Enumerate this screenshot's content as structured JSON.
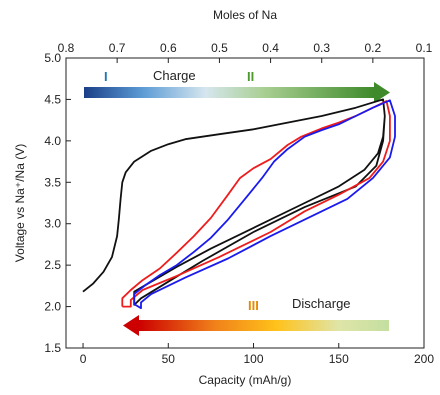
{
  "chart_data": {
    "type": "line",
    "xlabel": "Capacity (mAh/g)",
    "ylabel": "Voltage vs Na⁺/Na (V)",
    "x2label": "Moles of Na",
    "xlim": [
      -10,
      200
    ],
    "ylim": [
      1.5,
      5.0
    ],
    "x2lim": [
      0.8,
      0.1
    ],
    "xticks": [
      "0",
      "50",
      "100",
      "150",
      "200"
    ],
    "yticks": [
      "1.5",
      "2.0",
      "2.5",
      "3.0",
      "3.5",
      "4.0",
      "4.5",
      "5.0"
    ],
    "x2ticks": [
      "0.8",
      "0.7",
      "0.6",
      "0.5",
      "0.4",
      "0.3",
      "0.2",
      "0.1"
    ],
    "grid": false,
    "legend": "none",
    "annotations": {
      "charge_label": "Charge",
      "charge_stage_1": "I",
      "charge_stage_2": "II",
      "discharge_label": "Discharge",
      "discharge_stage_3": "III"
    },
    "colors": {
      "black": "#111111",
      "red": "#ee1c1c",
      "blue": "#1a1aee",
      "stage1": "#1f78b4",
      "stage2": "#4d9a2c",
      "stage3": "#e68a00"
    },
    "series": [
      {
        "color": "#111111",
        "points": [
          [
            0,
            2.18
          ],
          [
            6,
            2.28
          ],
          [
            12,
            2.42
          ],
          [
            17,
            2.6
          ],
          [
            20,
            2.85
          ],
          [
            21,
            3.05
          ],
          [
            22,
            3.3
          ],
          [
            23,
            3.5
          ],
          [
            25,
            3.62
          ],
          [
            30,
            3.75
          ],
          [
            40,
            3.88
          ],
          [
            50,
            3.96
          ],
          [
            60,
            4.02
          ],
          [
            80,
            4.08
          ],
          [
            100,
            4.14
          ],
          [
            120,
            4.22
          ],
          [
            140,
            4.3
          ],
          [
            160,
            4.4
          ],
          [
            176,
            4.5
          ],
          [
            177,
            4.3
          ],
          [
            176,
            4.05
          ],
          [
            173,
            3.85
          ],
          [
            165,
            3.65
          ],
          [
            150,
            3.45
          ],
          [
            130,
            3.25
          ],
          [
            100,
            2.95
          ],
          [
            75,
            2.7
          ],
          [
            55,
            2.48
          ],
          [
            40,
            2.3
          ],
          [
            30,
            2.18
          ],
          [
            30,
            2.02
          ],
          [
            34,
            2.1
          ],
          [
            50,
            2.3
          ],
          [
            70,
            2.55
          ],
          [
            100,
            2.9
          ],
          [
            130,
            3.2
          ],
          [
            160,
            3.45
          ],
          [
            172,
            3.7
          ],
          [
            176,
            4.0
          ],
          [
            177,
            4.3
          ],
          [
            176,
            4.5
          ]
        ]
      },
      {
        "color": "#ee1c1c",
        "points": [
          [
            23,
            2.0
          ],
          [
            23,
            2.1
          ],
          [
            28,
            2.2
          ],
          [
            35,
            2.32
          ],
          [
            45,
            2.46
          ],
          [
            55,
            2.65
          ],
          [
            65,
            2.85
          ],
          [
            75,
            3.07
          ],
          [
            85,
            3.35
          ],
          [
            92,
            3.55
          ],
          [
            100,
            3.67
          ],
          [
            110,
            3.78
          ],
          [
            120,
            3.95
          ],
          [
            128,
            4.05
          ],
          [
            140,
            4.15
          ],
          [
            150,
            4.22
          ],
          [
            160,
            4.3
          ],
          [
            170,
            4.4
          ],
          [
            178,
            4.48
          ],
          [
            180,
            4.3
          ],
          [
            180,
            4.0
          ],
          [
            176,
            3.75
          ],
          [
            168,
            3.55
          ],
          [
            150,
            3.35
          ],
          [
            130,
            3.15
          ],
          [
            110,
            2.9
          ],
          [
            80,
            2.6
          ],
          [
            55,
            2.37
          ],
          [
            35,
            2.2
          ],
          [
            28,
            2.08
          ],
          [
            28,
            2.0
          ],
          [
            23,
            2.0
          ]
        ]
      },
      {
        "color": "#1a1aee",
        "points": [
          [
            30,
            2.03
          ],
          [
            30,
            2.15
          ],
          [
            36,
            2.25
          ],
          [
            45,
            2.38
          ],
          [
            55,
            2.5
          ],
          [
            65,
            2.66
          ],
          [
            75,
            2.83
          ],
          [
            85,
            3.05
          ],
          [
            95,
            3.3
          ],
          [
            105,
            3.55
          ],
          [
            112,
            3.75
          ],
          [
            120,
            3.9
          ],
          [
            130,
            4.05
          ],
          [
            140,
            4.13
          ],
          [
            150,
            4.2
          ],
          [
            160,
            4.3
          ],
          [
            170,
            4.4
          ],
          [
            180,
            4.49
          ],
          [
            183,
            4.3
          ],
          [
            183,
            4.05
          ],
          [
            180,
            3.8
          ],
          [
            170,
            3.55
          ],
          [
            155,
            3.3
          ],
          [
            135,
            3.1
          ],
          [
            110,
            2.85
          ],
          [
            85,
            2.58
          ],
          [
            60,
            2.35
          ],
          [
            40,
            2.15
          ],
          [
            34,
            2.05
          ],
          [
            34,
            1.98
          ],
          [
            30,
            2.03
          ]
        ]
      }
    ]
  }
}
